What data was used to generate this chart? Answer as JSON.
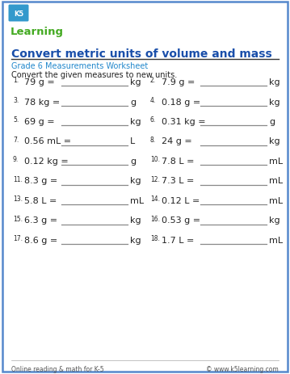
{
  "title": "Convert metric units of volume and mass",
  "subtitle": "Grade 6 Measurements Worksheet",
  "instruction": "Convert the given measures to new units.",
  "title_color": "#1a4faa",
  "subtitle_color": "#2288cc",
  "text_color": "#222222",
  "border_color": "#5588cc",
  "background_color": "#ffffff",
  "line_color": "#888888",
  "problems": [
    {
      "num": "1.",
      "expr": "79 g =",
      "unit": "kg",
      "col": 0
    },
    {
      "num": "2.",
      "expr": "7.9 g =",
      "unit": "kg",
      "col": 1
    },
    {
      "num": "3.",
      "expr": "78 kg =",
      "unit": "g",
      "col": 0
    },
    {
      "num": "4.",
      "expr": "0.18 g =",
      "unit": "kg",
      "col": 1
    },
    {
      "num": "5.",
      "expr": "69 g =",
      "unit": "kg",
      "col": 0
    },
    {
      "num": "6.",
      "expr": "0.31 kg =",
      "unit": "g",
      "col": 1
    },
    {
      "num": "7.",
      "expr": "0.56 mL =",
      "unit": "L",
      "col": 0
    },
    {
      "num": "8.",
      "expr": "24 g =",
      "unit": "kg",
      "col": 1
    },
    {
      "num": "9.",
      "expr": "0.12 kg =",
      "unit": "g",
      "col": 0
    },
    {
      "num": "10.",
      "expr": "7.8 L =",
      "unit": "mL",
      "col": 1
    },
    {
      "num": "11.",
      "expr": "8.3 g =",
      "unit": "kg",
      "col": 0
    },
    {
      "num": "12.",
      "expr": "7.3 L =",
      "unit": "mL",
      "col": 1
    },
    {
      "num": "13.",
      "expr": "5.8 L =",
      "unit": "mL",
      "col": 0
    },
    {
      "num": "14.",
      "expr": "0.12 L =",
      "unit": "mL",
      "col": 1
    },
    {
      "num": "15.",
      "expr": "6.3 g =",
      "unit": "kg",
      "col": 0
    },
    {
      "num": "16.",
      "expr": "0.53 g =",
      "unit": "kg",
      "col": 1
    },
    {
      "num": "17.",
      "expr": "8.6 g =",
      "unit": "kg",
      "col": 0
    },
    {
      "num": "18.",
      "expr": "1.7 L =",
      "unit": "mL",
      "col": 1
    }
  ],
  "footer_left": "Online reading & math for K-5",
  "footer_right": "© www.k5learning.com",
  "logo_text_k5": "K5",
  "logo_text_learning": "Learning",
  "logo_shield_color": "#3399cc",
  "logo_green_color": "#44aa22"
}
